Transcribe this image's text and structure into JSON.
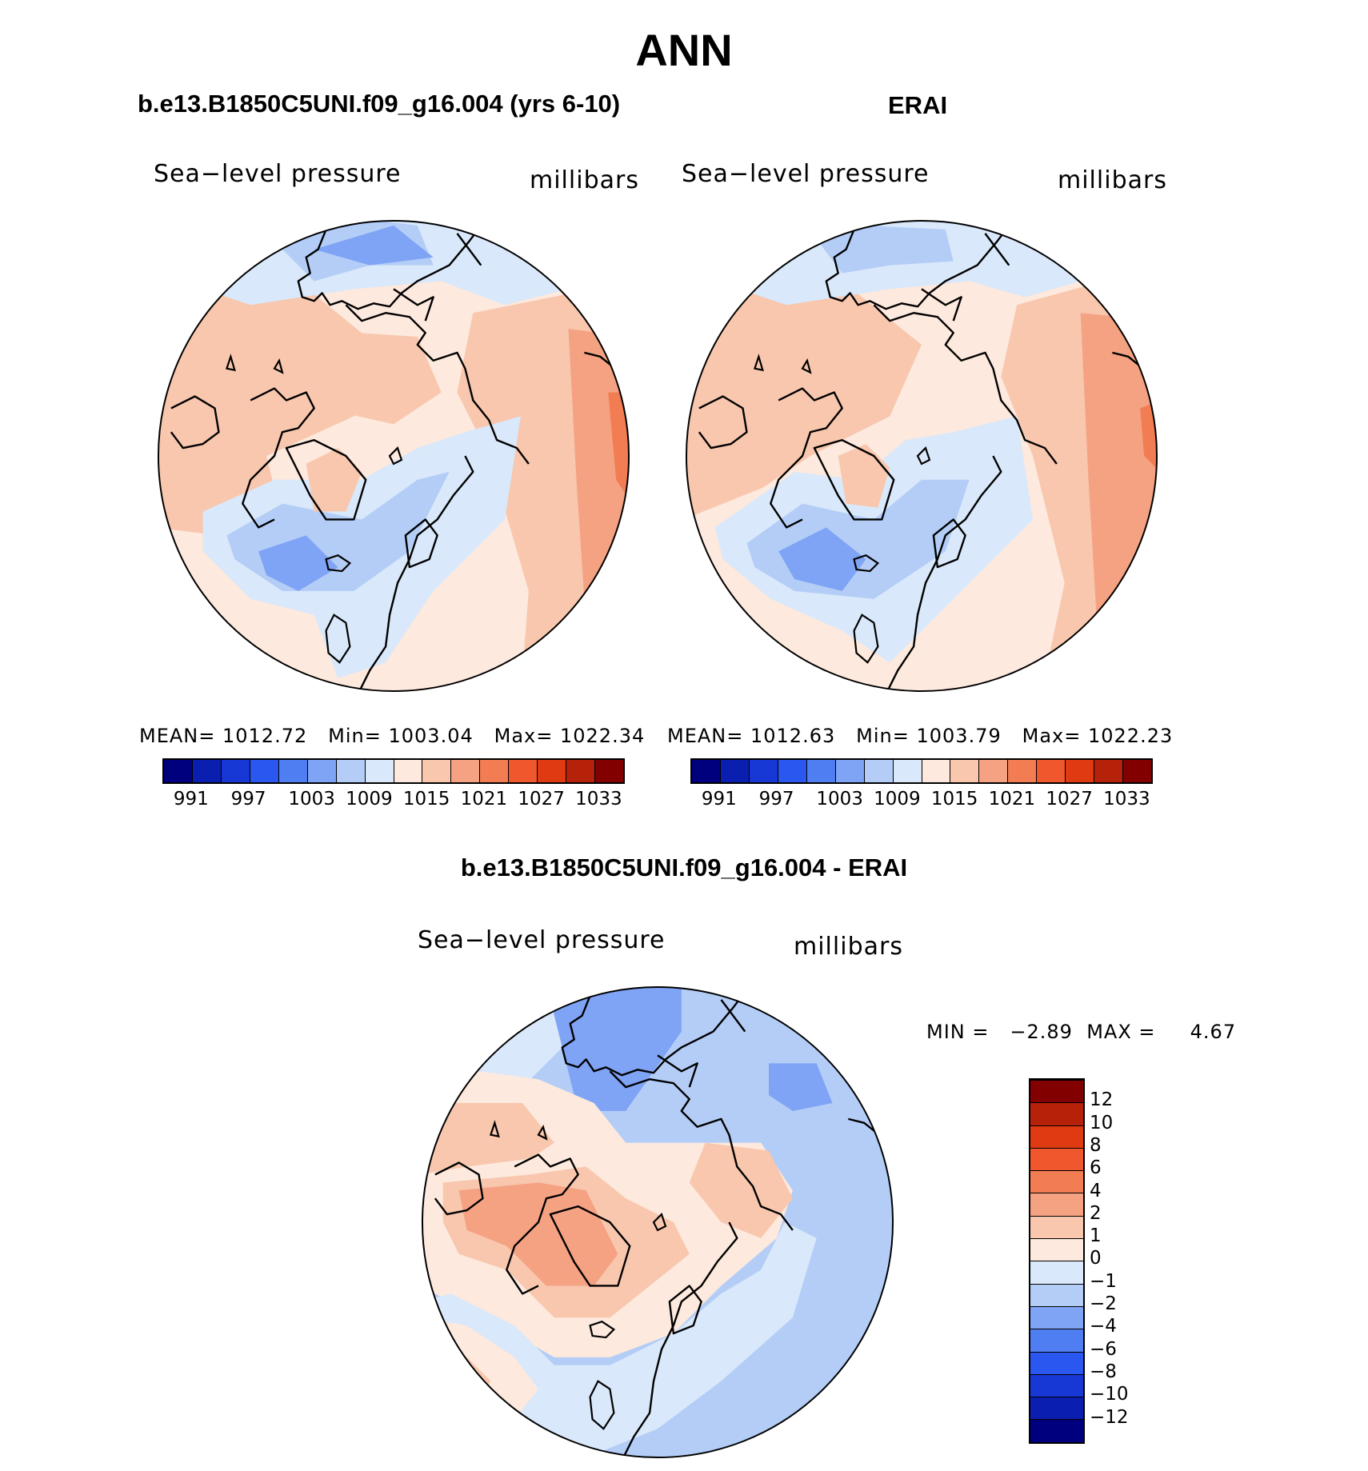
{
  "figure": {
    "title": "ANN",
    "panels": [
      {
        "id": "model",
        "title": "b.e13.B1850C5UNI.f09_g16.004 (yrs 6-10)",
        "variable": "Sea−level pressure",
        "units": "millibars",
        "stats": {
          "mean_label": "MEAN=",
          "mean": "1012.72",
          "min_label": "Min=",
          "min": "1003.04",
          "max_label": "Max=",
          "max": "1022.34"
        }
      },
      {
        "id": "obs",
        "title": "ERAI",
        "variable": "Sea−level pressure",
        "units": "millibars",
        "stats": {
          "mean_label": "MEAN=",
          "mean": "1012.63",
          "min_label": "Min=",
          "min": "1003.79",
          "max_label": "Max=",
          "max": "1022.23"
        }
      },
      {
        "id": "diff",
        "title": "b.e13.B1850C5UNI.f09_g16.004 - ERAI",
        "variable": "Sea−level pressure",
        "units": "millibars",
        "stats": {
          "min_label": "MIN =",
          "min": "−2.89",
          "max_label": "MAX =",
          "max": "4.67"
        }
      }
    ]
  },
  "colorbars": {
    "field": {
      "colors": [
        "#00007f",
        "#0a1fb0",
        "#1838d6",
        "#2a57ef",
        "#4f7df2",
        "#7fa3f5",
        "#b3cdf7",
        "#d9e8fa",
        "#fde9dd",
        "#f8c7ae",
        "#f5a283",
        "#f27d53",
        "#f0572c",
        "#e03a12",
        "#b52109",
        "#820000"
      ],
      "tick_labels": [
        "991",
        "997",
        "1003",
        "1009",
        "1015",
        "1021",
        "1027",
        "1033"
      ]
    },
    "diff": {
      "colors": [
        "#00007f",
        "#0a1fb0",
        "#1838d6",
        "#2a57ef",
        "#4f7df2",
        "#7fa3f5",
        "#b3cdf7",
        "#d9e8fa",
        "#fde9dd",
        "#f8c7ae",
        "#f5a283",
        "#f27d53",
        "#f0572c",
        "#e03a12",
        "#b52109",
        "#820000"
      ],
      "tick_labels": [
        "−12",
        "−10",
        "−8",
        "−6",
        "−4",
        "−2",
        "−1",
        "0",
        "1",
        "2",
        "4",
        "6",
        "8",
        "10",
        "12"
      ]
    }
  }
}
